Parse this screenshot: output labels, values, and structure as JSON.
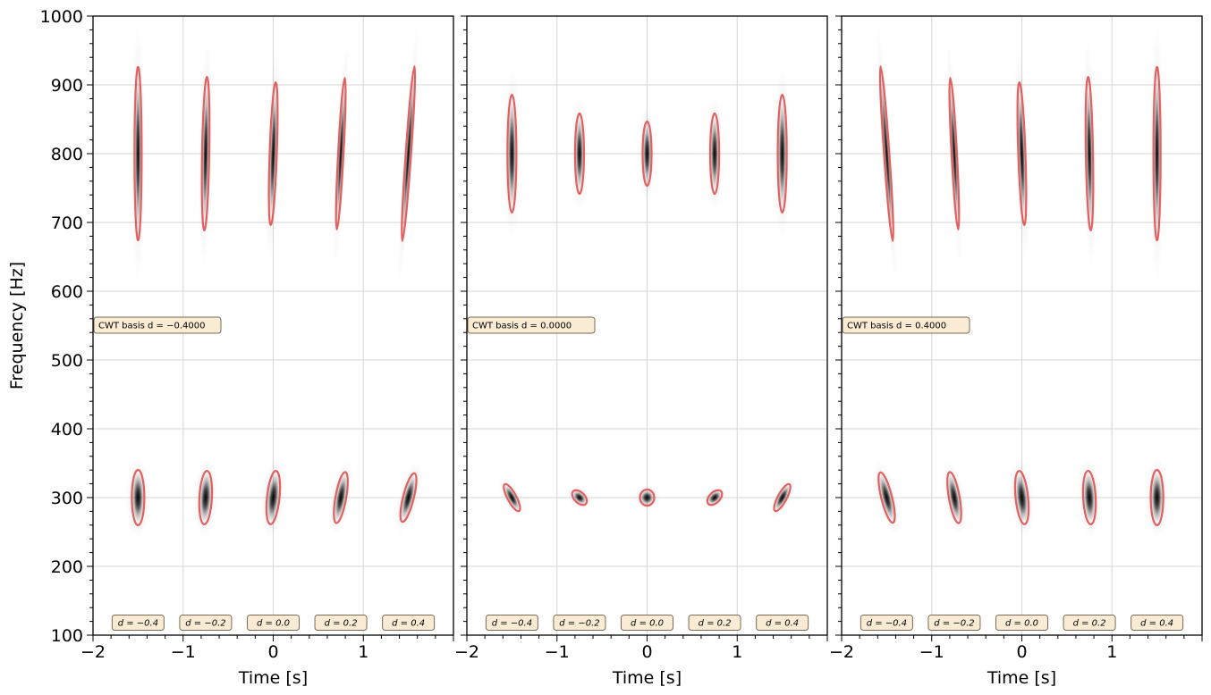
{
  "chart_data": [
    {
      "type": "heatmap",
      "xlabel": "Time [s]",
      "ylabel": "Frequency [Hz]",
      "xlim": [
        -2,
        2
      ],
      "ylim": [
        100,
        1000
      ],
      "xticks": [
        -2,
        -1,
        0,
        1
      ],
      "xtick_labels": [
        "−2",
        "−1",
        "0",
        "1"
      ],
      "yticks": [
        100,
        200,
        300,
        400,
        500,
        600,
        700,
        800,
        900,
        1000
      ],
      "ytick_labels": [
        "100",
        "200",
        "300",
        "400",
        "500",
        "600",
        "700",
        "800",
        "900",
        "1000"
      ],
      "grid": true,
      "basis_label": "CWT basis d = −0.4000",
      "atoms": [
        {
          "t": -1.5,
          "f": 300,
          "d_label": "d = −0.4"
        },
        {
          "t": -0.75,
          "f": 300,
          "d_label": "d = −0.2"
        },
        {
          "t": 0.0,
          "f": 300,
          "d_label": "d = 0.0"
        },
        {
          "t": 0.75,
          "f": 300,
          "d_label": "d = 0.2"
        },
        {
          "t": 1.5,
          "f": 300,
          "d_label": "d = 0.4"
        },
        {
          "t": -1.5,
          "f": 800
        },
        {
          "t": -0.75,
          "f": 800
        },
        {
          "t": 0.0,
          "f": 800
        },
        {
          "t": 0.75,
          "f": 800
        },
        {
          "t": 1.5,
          "f": 800
        }
      ]
    },
    {
      "type": "heatmap",
      "xlabel": "Time [s]",
      "ylabel": "",
      "xlim": [
        -2,
        2
      ],
      "ylim": [
        100,
        1000
      ],
      "xticks": [
        -2,
        -1,
        0,
        1
      ],
      "xtick_labels": [
        "−2",
        "−1",
        "0",
        "1"
      ],
      "yticks": [
        100,
        200,
        300,
        400,
        500,
        600,
        700,
        800,
        900,
        1000
      ],
      "ytick_labels": [],
      "grid": true,
      "basis_label": "CWT basis d = 0.0000",
      "atoms": [
        {
          "t": -1.5,
          "f": 300,
          "d_label": "d = −0.4"
        },
        {
          "t": -0.75,
          "f": 300,
          "d_label": "d = −0.2"
        },
        {
          "t": 0.0,
          "f": 300,
          "d_label": "d = 0.0"
        },
        {
          "t": 0.75,
          "f": 300,
          "d_label": "d = 0.2"
        },
        {
          "t": 1.5,
          "f": 300,
          "d_label": "d = 0.4"
        },
        {
          "t": -1.5,
          "f": 800
        },
        {
          "t": -0.75,
          "f": 800
        },
        {
          "t": 0.0,
          "f": 800
        },
        {
          "t": 0.75,
          "f": 800
        },
        {
          "t": 1.5,
          "f": 800
        }
      ]
    },
    {
      "type": "heatmap",
      "xlabel": "Time [s]",
      "ylabel": "",
      "xlim": [
        -2,
        2
      ],
      "ylim": [
        100,
        1000
      ],
      "xticks": [
        -2,
        -1,
        0,
        1
      ],
      "xtick_labels": [
        "−2",
        "−1",
        "0",
        "1"
      ],
      "yticks": [
        100,
        200,
        300,
        400,
        500,
        600,
        700,
        800,
        900,
        1000
      ],
      "ytick_labels": [],
      "grid": true,
      "basis_label": "CWT basis d = 0.4000",
      "atoms": [
        {
          "t": -1.5,
          "f": 300,
          "d_label": "d = −0.4"
        },
        {
          "t": -0.75,
          "f": 300,
          "d_label": "d = −0.2"
        },
        {
          "t": 0.0,
          "f": 300,
          "d_label": "d = 0.0"
        },
        {
          "t": 0.75,
          "f": 300,
          "d_label": "d = 0.2"
        },
        {
          "t": 1.5,
          "f": 300,
          "d_label": "d = 0.4"
        },
        {
          "t": -1.5,
          "f": 800
        },
        {
          "t": -0.75,
          "f": 800
        },
        {
          "t": 0.0,
          "f": 800
        },
        {
          "t": 0.75,
          "f": 800
        },
        {
          "t": 1.5,
          "f": 800
        }
      ]
    }
  ],
  "colors": {
    "contour": "#e05050",
    "core": "#111111",
    "annotation_fill": "#faecd4",
    "annotation_stroke": "#7a6a55",
    "grid": "#d6d6d6"
  }
}
